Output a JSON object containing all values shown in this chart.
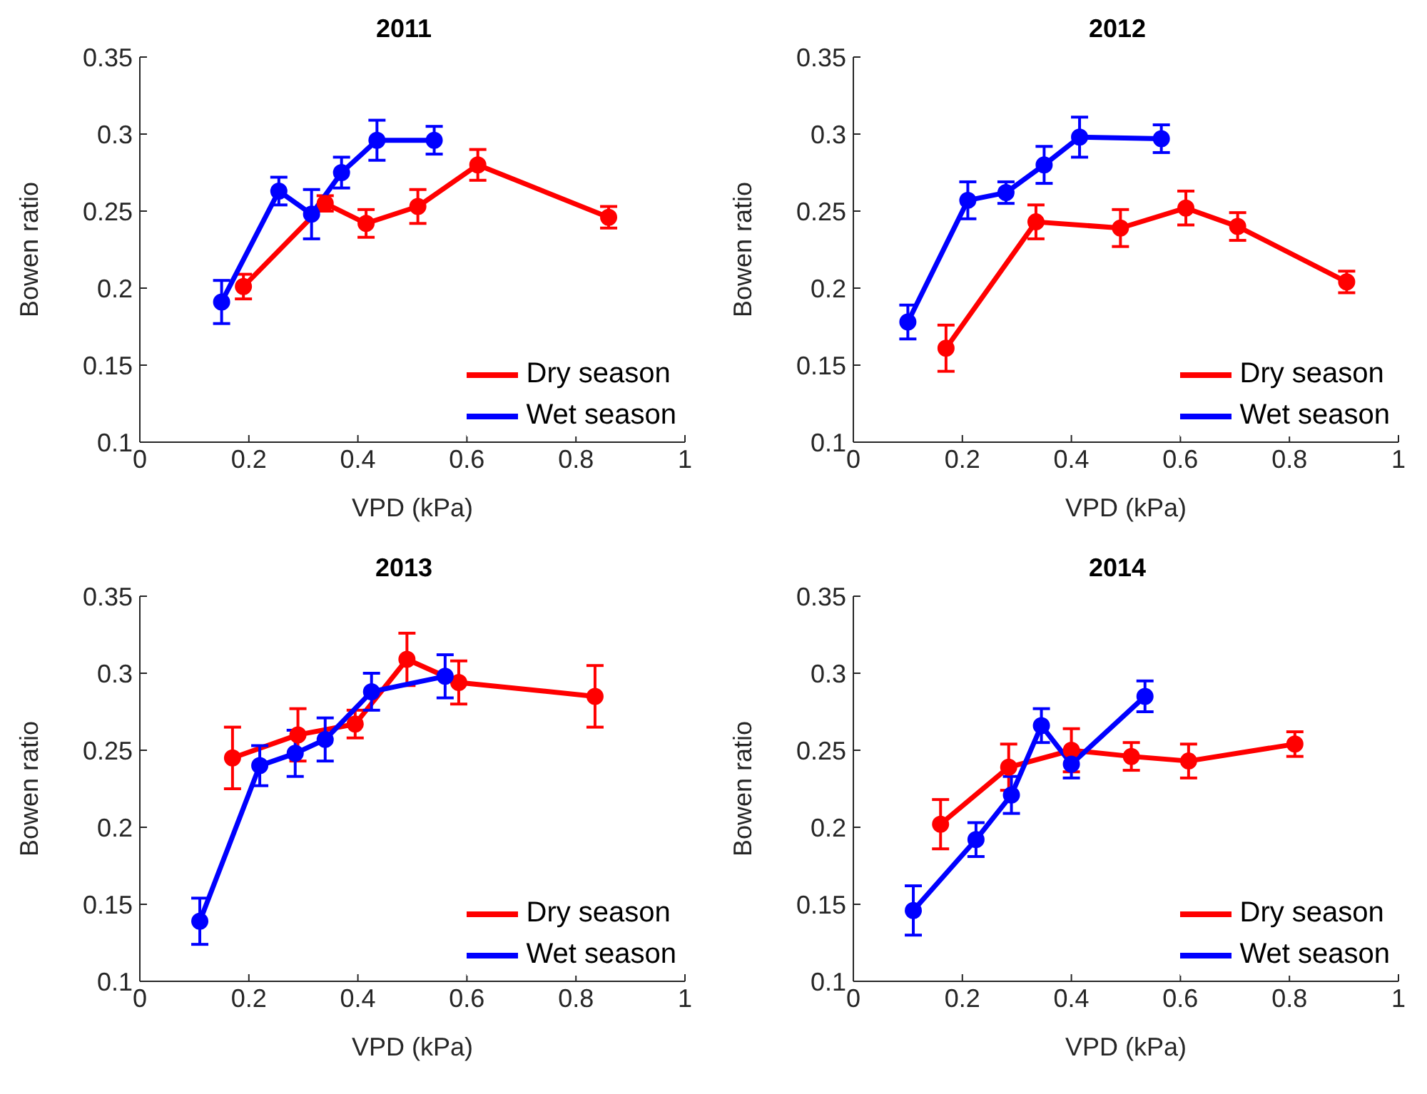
{
  "chart_data": [
    {
      "type": "line",
      "title": "2011",
      "xlabel": "VPD (kPa)",
      "ylabel": "Bowen ratio",
      "xlim": [
        0,
        1
      ],
      "xticks": [
        0,
        0.2,
        0.4,
        0.6,
        0.8,
        1
      ],
      "ylim": [
        0.1,
        0.35
      ],
      "yticks": [
        0.1,
        0.15,
        0.2,
        0.25,
        0.3,
        0.35
      ],
      "legend": "bottom right",
      "marker": "circle",
      "line_style": "solid",
      "grid": false,
      "series": [
        {
          "name": "Dry season",
          "color": "#ff0000",
          "x": [
            0.19,
            0.34,
            0.415,
            0.51,
            0.62,
            0.86
          ],
          "values": [
            0.201,
            0.255,
            0.242,
            0.253,
            0.28,
            0.246
          ],
          "errors": [
            0.008,
            0.005,
            0.009,
            0.011,
            0.01,
            0.007
          ]
        },
        {
          "name": "Wet season",
          "color": "#0000ff",
          "x": [
            0.15,
            0.255,
            0.315,
            0.37,
            0.435,
            0.54
          ],
          "values": [
            0.191,
            0.263,
            0.248,
            0.275,
            0.296,
            0.296
          ],
          "errors": [
            0.014,
            0.009,
            0.016,
            0.01,
            0.013,
            0.009
          ]
        }
      ]
    },
    {
      "type": "line",
      "title": "2012",
      "xlabel": "VPD (kPa)",
      "ylabel": "Bowen ratio",
      "xlim": [
        0,
        1
      ],
      "xticks": [
        0,
        0.2,
        0.4,
        0.6,
        0.8,
        1
      ],
      "ylim": [
        0.1,
        0.35
      ],
      "yticks": [
        0.1,
        0.15,
        0.2,
        0.25,
        0.3,
        0.35
      ],
      "legend": "bottom right",
      "marker": "circle",
      "line_style": "solid",
      "grid": false,
      "series": [
        {
          "name": "Dry season",
          "color": "#ff0000",
          "x": [
            0.17,
            0.335,
            0.49,
            0.61,
            0.705,
            0.905
          ],
          "values": [
            0.161,
            0.243,
            0.239,
            0.252,
            0.24,
            0.204
          ],
          "errors": [
            0.015,
            0.011,
            0.012,
            0.011,
            0.009,
            0.007
          ]
        },
        {
          "name": "Wet season",
          "color": "#0000ff",
          "x": [
            0.1,
            0.21,
            0.28,
            0.35,
            0.415,
            0.565
          ],
          "values": [
            0.178,
            0.257,
            0.262,
            0.28,
            0.298,
            0.297
          ],
          "errors": [
            0.011,
            0.012,
            0.007,
            0.012,
            0.013,
            0.009
          ]
        }
      ]
    },
    {
      "type": "line",
      "title": "2013",
      "xlabel": "VPD (kPa)",
      "ylabel": "Bowen ratio",
      "xlim": [
        0,
        1
      ],
      "xticks": [
        0,
        0.2,
        0.4,
        0.6,
        0.8,
        1
      ],
      "ylim": [
        0.1,
        0.35
      ],
      "yticks": [
        0.1,
        0.15,
        0.2,
        0.25,
        0.3,
        0.35
      ],
      "legend": "bottom right",
      "marker": "circle",
      "line_style": "solid",
      "grid": false,
      "series": [
        {
          "name": "Dry season",
          "color": "#ff0000",
          "x": [
            0.17,
            0.29,
            0.395,
            0.49,
            0.585,
            0.835
          ],
          "values": [
            0.245,
            0.26,
            0.267,
            0.309,
            0.294,
            0.285
          ],
          "errors": [
            0.02,
            0.017,
            0.009,
            0.017,
            0.014,
            0.02
          ]
        },
        {
          "name": "Wet season",
          "color": "#0000ff",
          "x": [
            0.11,
            0.22,
            0.285,
            0.34,
            0.425,
            0.56
          ],
          "values": [
            0.139,
            0.24,
            0.248,
            0.257,
            0.288,
            0.298
          ],
          "errors": [
            0.015,
            0.013,
            0.015,
            0.014,
            0.012,
            0.014
          ]
        }
      ]
    },
    {
      "type": "line",
      "title": "2014",
      "xlabel": "VPD (kPa)",
      "ylabel": "Bowen ratio",
      "xlim": [
        0,
        1
      ],
      "xticks": [
        0,
        0.2,
        0.4,
        0.6,
        0.8,
        1
      ],
      "ylim": [
        0.1,
        0.35
      ],
      "yticks": [
        0.1,
        0.15,
        0.2,
        0.25,
        0.3,
        0.35
      ],
      "legend": "bottom right",
      "marker": "circle",
      "line_style": "solid",
      "grid": false,
      "series": [
        {
          "name": "Dry season",
          "color": "#ff0000",
          "x": [
            0.16,
            0.285,
            0.4,
            0.51,
            0.615,
            0.81
          ],
          "values": [
            0.202,
            0.239,
            0.25,
            0.246,
            0.243,
            0.254
          ],
          "errors": [
            0.016,
            0.015,
            0.014,
            0.009,
            0.011,
            0.008
          ]
        },
        {
          "name": "Wet season",
          "color": "#0000ff",
          "x": [
            0.11,
            0.225,
            0.29,
            0.345,
            0.4,
            0.535
          ],
          "values": [
            0.146,
            0.192,
            0.221,
            0.266,
            0.241,
            0.285
          ],
          "errors": [
            0.016,
            0.011,
            0.012,
            0.011,
            0.009,
            0.01
          ]
        }
      ]
    }
  ]
}
